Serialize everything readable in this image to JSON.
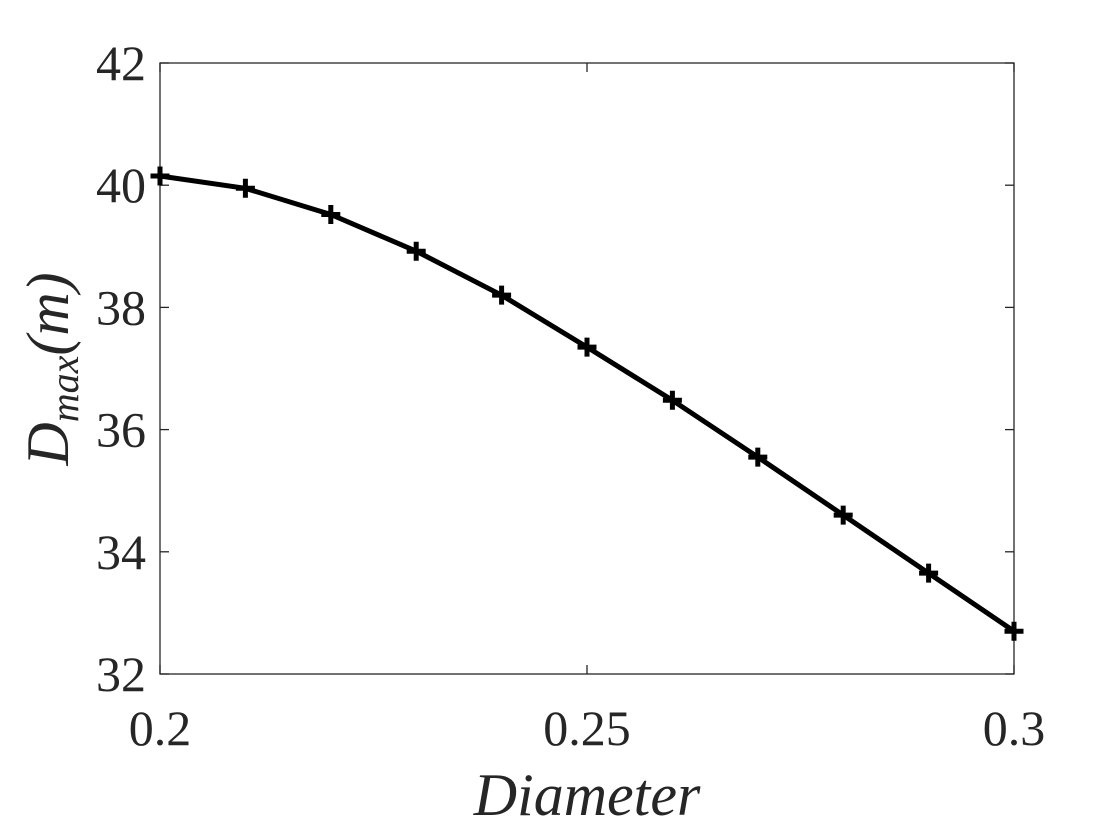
{
  "chart_data": {
    "type": "line",
    "xlabel": "Diameter",
    "ylabel": {
      "main": "D",
      "subscript": "max",
      "unit": "(m)"
    },
    "xlim": [
      0.2,
      0.3
    ],
    "ylim": [
      32,
      42
    ],
    "x_ticks": [
      0.2,
      0.25,
      0.3
    ],
    "x_tick_labels": [
      "0.2",
      "0.25",
      "0.3"
    ],
    "y_ticks": [
      32,
      34,
      36,
      38,
      40,
      42
    ],
    "y_tick_labels": [
      "32",
      "34",
      "36",
      "38",
      "40",
      "42"
    ],
    "grid": false,
    "box": true,
    "series": [
      {
        "color": "#000000",
        "marker": "plus",
        "x": [
          0.2,
          0.21,
          0.22,
          0.23,
          0.24,
          0.25,
          0.26,
          0.27,
          0.28,
          0.29,
          0.3
        ],
        "y": [
          40.15,
          39.95,
          39.52,
          38.92,
          38.2,
          37.35,
          36.48,
          35.55,
          34.6,
          33.65,
          32.7
        ]
      }
    ]
  }
}
